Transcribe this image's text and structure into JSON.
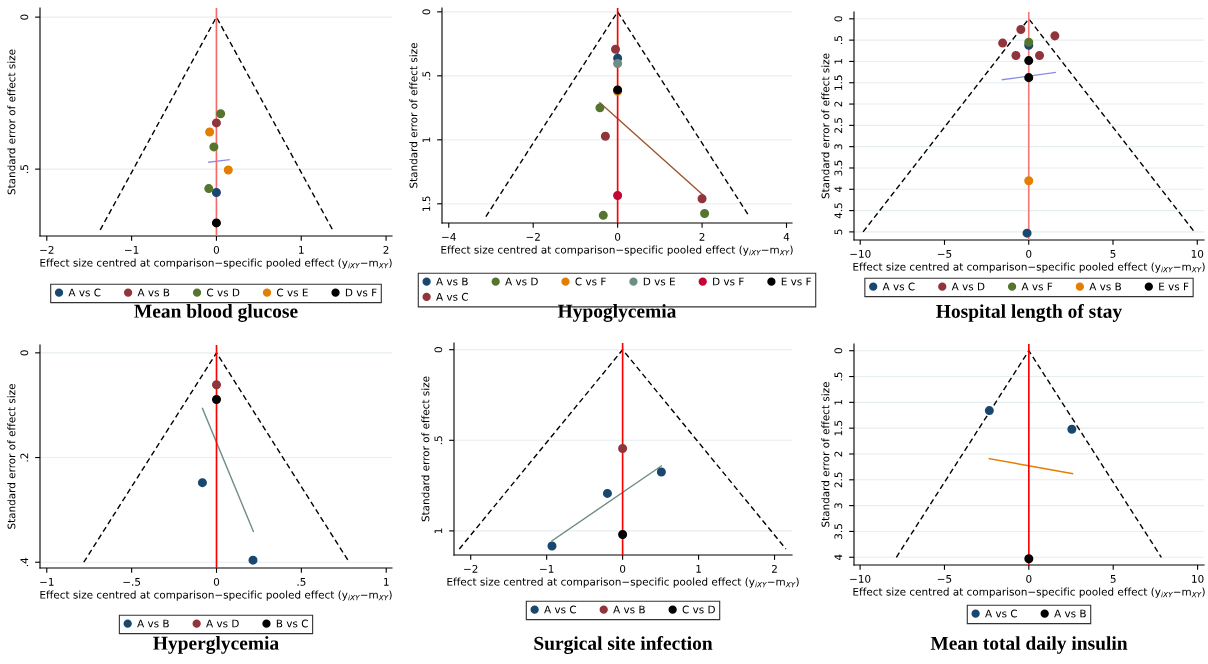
{
  "chart_data": [
    {
      "type": "scatter",
      "title": "Mean blood glucose",
      "xlabel": "Effect size centred at comparison−specific pooled effect (y$_{iXY}$−m$_{XY}$)",
      "ylabel": "Standard error of effect size",
      "xlim": [
        -2.08,
        2.07
      ],
      "ylim": [
        0.72,
        -0.03
      ],
      "xticks": [
        {
          "value": -2,
          "label": "−2"
        },
        {
          "value": -1,
          "label": "−1"
        },
        0,
        1,
        2
      ],
      "yticks": [
        0,
        {
          "value": 0.5,
          "label": ".5"
        }
      ],
      "grid": "y",
      "legend": "bottom",
      "marker": "circle",
      "ref_lines": [
        {
          "axis": "x",
          "value": 0,
          "color": "#f46a6a"
        }
      ],
      "series": [
        {
          "type": "line",
          "marker": "none",
          "color": "#000000",
          "line_style": "dashed",
          "x": [
            -1.37,
            0,
            1.37
          ],
          "values": [
            0.7,
            0,
            0.7
          ]
        },
        {
          "type": "line",
          "marker": "none",
          "color": "#8a8ae6",
          "line_style": "solid",
          "x": [
            -0.09,
            0.15
          ],
          "values": [
            0.477,
            0.469
          ]
        },
        {
          "name": "A vs C",
          "color": "#1a476f",
          "x": [
            0
          ],
          "values": [
            0.577
          ]
        },
        {
          "name": "A vs B",
          "color": "#90353b",
          "x": [
            0
          ],
          "values": [
            0.348
          ]
        },
        {
          "name": "C vs D",
          "color": "#55752f",
          "x": [
            0.05,
            -0.03,
            -0.09
          ],
          "values": [
            0.318,
            0.427,
            0.564
          ]
        },
        {
          "name": "C vs E",
          "color": "#e37e00",
          "x": [
            -0.08,
            0.14
          ],
          "values": [
            0.378,
            0.503
          ]
        },
        {
          "name": "D vs F",
          "color": "#000000",
          "x": [
            0
          ],
          "values": [
            0.677
          ]
        }
      ]
    },
    {
      "type": "scatter",
      "title": "Hypoglycemia",
      "xlabel": "Effect size centred at comparison−specific pooled effect (y$_{iXY}$−m$_{XY}$)",
      "ylabel": "Standard error of effect size",
      "xlim": [
        -4.16,
        4.13
      ],
      "ylim": [
        1.65,
        -0.03
      ],
      "xticks": [
        {
          "value": -4,
          "label": "−4"
        },
        {
          "value": -2,
          "label": "−2"
        },
        0,
        2,
        4
      ],
      "yticks": [
        0,
        {
          "value": 0.5,
          "label": ".5"
        },
        1,
        1.5
      ],
      "grid": "y",
      "legend": "bottom",
      "marker": "circle",
      "ref_lines": [
        {
          "axis": "x",
          "value": 0,
          "color": "#ff0000"
        }
      ],
      "series": [
        {
          "type": "line",
          "marker": "none",
          "color": "#000000",
          "line_style": "dashed",
          "x": [
            -3.12,
            0,
            3.12
          ],
          "values": [
            1.6,
            0,
            1.6
          ]
        },
        {
          "type": "line",
          "marker": "none",
          "color": "#a0522d",
          "line_style": "solid",
          "x": [
            -0.42,
            2.05
          ],
          "values": [
            0.71,
            1.44
          ]
        },
        {
          "name": "A vs B",
          "color": "#1a476f",
          "x": [
            0
          ],
          "values": [
            0.362
          ]
        },
        {
          "name": "A vs C",
          "color": "#90353b",
          "x": [
            -0.05,
            -0.29,
            2.0
          ],
          "values": [
            0.292,
            0.972,
            1.46
          ]
        },
        {
          "name": "A vs D",
          "color": "#55752f",
          "x": [
            -0.42,
            2.06,
            -0.34
          ],
          "values": [
            0.75,
            1.576,
            1.59
          ]
        },
        {
          "name": "C vs F",
          "color": "#e37e00",
          "x": [
            0
          ],
          "values": [
            0.62
          ]
        },
        {
          "name": "D vs E",
          "color": "#6e8e84",
          "x": [
            0
          ],
          "values": [
            0.404
          ]
        },
        {
          "name": "D vs F",
          "color": "#c10534",
          "x": [
            0
          ],
          "values": [
            1.435
          ]
        },
        {
          "name": "E vs F",
          "color": "#000000",
          "x": [
            0
          ],
          "values": [
            0.61
          ]
        }
      ]
    },
    {
      "type": "scatter",
      "title": "Hospital length of stay",
      "xlabel": "Effect size centred at comparison−specific pooled effect (y$_{iXY}$−m$_{XY}$)",
      "ylabel": "Standard error of effect size",
      "xlim": [
        -10.37,
        10.4
      ],
      "ylim": [
        5.19,
        -0.16
      ],
      "xticks": [
        {
          "value": -10,
          "label": "−10"
        },
        {
          "value": -5,
          "label": "−5"
        },
        0,
        5,
        10
      ],
      "yticks": [
        0,
        {
          "value": 0.5,
          "label": ".5"
        },
        1,
        1.5,
        2,
        2.5,
        3,
        3.5,
        4,
        4.5,
        5
      ],
      "grid": "y",
      "legend": "bottom",
      "marker": "circle",
      "ref_lines": [
        {
          "axis": "x",
          "value": 0,
          "color": "#f47a7a"
        }
      ],
      "series": [
        {
          "type": "line",
          "marker": "none",
          "color": "#000000",
          "line_style": "dashed",
          "x": [
            -9.83,
            0,
            9.83
          ],
          "values": [
            5.0,
            0,
            5.0
          ]
        },
        {
          "type": "line",
          "marker": "none",
          "color": "#8a8ae6",
          "line_style": "solid",
          "x": [
            -1.57,
            1.57
          ],
          "values": [
            1.43,
            1.26
          ]
        },
        {
          "name": "A vs C",
          "color": "#1a476f",
          "x": [
            0,
            -0.1
          ],
          "values": [
            0.62,
            5.03
          ]
        },
        {
          "name": "A vs D",
          "color": "#90353b",
          "x": [
            -0.47,
            1.55,
            -1.55,
            -0.76,
            0.64
          ],
          "values": [
            0.25,
            0.4,
            0.57,
            0.86,
            0.86
          ]
        },
        {
          "name": "A vs F",
          "color": "#55752f",
          "x": [
            0
          ],
          "values": [
            0.55
          ]
        },
        {
          "name": "A vs B",
          "color": "#e37e00",
          "x": [
            0
          ],
          "values": [
            3.8
          ]
        },
        {
          "name": "E vs F",
          "color": "#000000",
          "x": [
            0,
            0
          ],
          "values": [
            0.98,
            1.38
          ]
        }
      ]
    },
    {
      "type": "scatter",
      "title": "Hyperglycemia",
      "xlabel": "Effect size centred at comparison−specific pooled effect (y$_{iXY}$−m$_{XY}$)",
      "ylabel": "Standard error of effect size",
      "xlim": [
        -1.04,
        1.034
      ],
      "ylim": [
        0.411,
        -0.015
      ],
      "xticks": [
        {
          "value": -1,
          "label": "−1"
        },
        {
          "value": -0.5,
          "label": "−.5"
        },
        0,
        {
          "value": 0.5,
          "label": ".5"
        },
        1
      ],
      "yticks": [
        0,
        {
          "value": 0.2,
          "label": ".2"
        },
        {
          "value": 0.4,
          "label": ".4"
        }
      ],
      "grid": "y",
      "legend": "bottom",
      "marker": "circle",
      "ref_lines": [
        {
          "axis": "x",
          "value": 0,
          "color": "#ff0000"
        }
      ],
      "series": [
        {
          "type": "line",
          "marker": "none",
          "color": "#000000",
          "line_style": "dashed",
          "x": [
            -0.782,
            0,
            0.782
          ],
          "values": [
            0.4,
            0,
            0.4
          ]
        },
        {
          "type": "line",
          "marker": "none",
          "color": "#6e8e84",
          "line_style": "solid",
          "x": [
            -0.083,
            0.217
          ],
          "values": [
            0.106,
            0.341
          ]
        },
        {
          "name": "A vs B",
          "color": "#1a476f",
          "x": [
            -0.083,
            0.215
          ],
          "values": [
            0.248,
            0.396
          ]
        },
        {
          "name": "A vs D",
          "color": "#90353b",
          "x": [
            0
          ],
          "values": [
            0.061
          ]
        },
        {
          "name": "B vs C",
          "color": "#000000",
          "x": [
            0
          ],
          "values": [
            0.089
          ]
        }
      ]
    },
    {
      "type": "scatter",
      "title": "Surgical site infection",
      "xlabel": "Effect size centred at comparison−specific pooled effect (y$_{iXY}$−m$_{XY}$)",
      "ylabel": "Standard error of effect size",
      "xlim": [
        -2.22,
        2.23
      ],
      "ylim": [
        1.133,
        -0.037
      ],
      "xticks": [
        {
          "value": -2,
          "label": "−2"
        },
        {
          "value": -1,
          "label": "−1"
        },
        0,
        1,
        2
      ],
      "yticks": [
        0,
        {
          "value": 0.5,
          "label": ".5"
        },
        1
      ],
      "grid": "y",
      "legend": "bottom",
      "marker": "circle",
      "ref_lines": [
        {
          "axis": "x",
          "value": 0,
          "color": "#ff0000"
        }
      ],
      "series": [
        {
          "type": "line",
          "marker": "none",
          "color": "#000000",
          "line_style": "dashed",
          "x": [
            -2.15,
            0,
            2.15
          ],
          "values": [
            1.1,
            0,
            1.1
          ]
        },
        {
          "type": "line",
          "marker": "none",
          "color": "#6e8e84",
          "line_style": "solid",
          "x": [
            -0.93,
            0.51
          ],
          "values": [
            1.055,
            0.641
          ]
        },
        {
          "name": "A vs C",
          "color": "#1a476f",
          "x": [
            0.51,
            -0.2,
            -0.93
          ],
          "values": [
            0.675,
            0.793,
            1.083
          ]
        },
        {
          "name": "A vs B",
          "color": "#90353b",
          "x": [
            0
          ],
          "values": [
            0.545
          ]
        },
        {
          "name": "C vs D",
          "color": "#000000",
          "x": [
            0
          ],
          "values": [
            1.02
          ]
        }
      ]
    },
    {
      "type": "scatter",
      "title": "Mean total daily insulin",
      "xlabel": "Effect size centred at comparison−specific pooled effect (y$_{iXY}$−m$_{XY}$)",
      "ylabel": "Standard error of effect size",
      "xlim": [
        -10.36,
        10.38
      ],
      "ylim": [
        4.15,
        -0.13
      ],
      "xticks": [
        {
          "value": -10,
          "label": "−10"
        },
        {
          "value": -5,
          "label": "−5"
        },
        0,
        5,
        10
      ],
      "yticks": [
        0,
        {
          "value": 0.5,
          "label": ".5"
        },
        1,
        1.5,
        2,
        2.5,
        3,
        3.5,
        4
      ],
      "grid": "y",
      "legend": "bottom",
      "marker": "circle",
      "ref_lines": [
        {
          "axis": "x",
          "value": 0,
          "color": "#ff0000"
        }
      ],
      "series": [
        {
          "type": "line",
          "marker": "none",
          "color": "#000000",
          "line_style": "dashed",
          "x": [
            -7.85,
            0,
            7.85
          ],
          "values": [
            4.0,
            0,
            4.0
          ]
        },
        {
          "type": "line",
          "marker": "none",
          "color": "#e37e00",
          "line_style": "solid",
          "x": [
            -2.34,
            2.59
          ],
          "values": [
            2.09,
            2.38
          ]
        },
        {
          "name": "A vs C",
          "color": "#1a476f",
          "x": [
            -2.34,
            2.55
          ],
          "values": [
            1.16,
            1.52
          ]
        },
        {
          "name": "A vs B",
          "color": "#000000",
          "x": [
            0
          ],
          "values": [
            4.03
          ]
        }
      ]
    }
  ]
}
